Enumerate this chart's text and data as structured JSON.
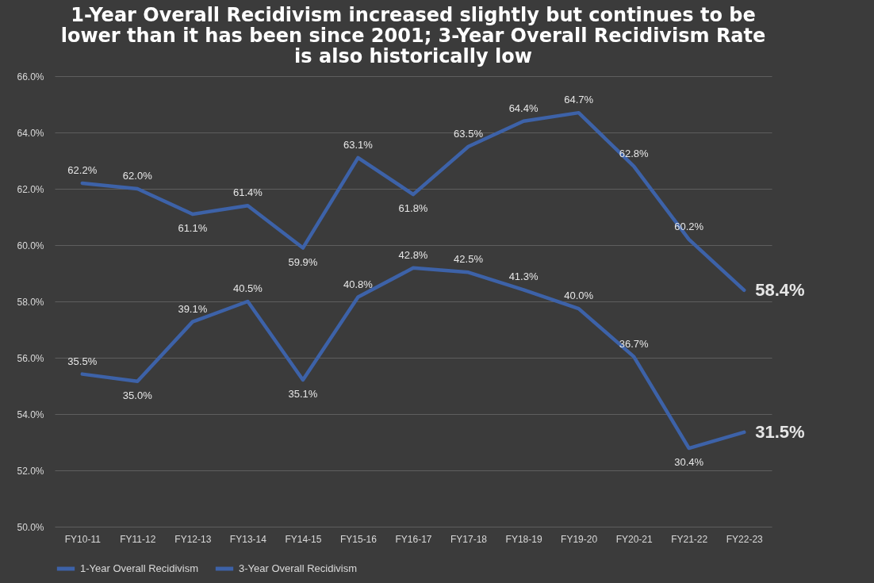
{
  "chart_data": {
    "type": "line",
    "title": "1-Year Overall Recidivism increased slightly but continues to be lower than it has been since 2001; 3-Year Overall Recidivism Rate is also historically low",
    "categories": [
      "FY10-11",
      "FY11-12",
      "FY12-13",
      "FY13-14",
      "FY14-15",
      "FY15-16",
      "FY16-17",
      "FY17-18",
      "FY18-19",
      "FY19-20",
      "FY20-21",
      "FY21-22",
      "FY22-23"
    ],
    "series": [
      {
        "name": "1-Year Overall Recidivism",
        "color": "#3d62a8",
        "axis": "y2",
        "values": [
          35.5,
          35.0,
          39.1,
          40.5,
          35.1,
          40.8,
          42.8,
          42.5,
          41.3,
          40.0,
          36.7,
          30.4,
          31.5
        ],
        "value_labels": [
          "35.5%",
          "35.0%",
          "39.1%",
          "40.5%",
          "35.1%",
          "40.8%",
          "42.8%",
          "42.5%",
          "41.3%",
          "40.0%",
          "36.7%",
          "30.4%",
          "31.5%"
        ]
      },
      {
        "name": "3-Year Overall Recidivism",
        "color": "#3d62a8",
        "values": [
          62.2,
          62.0,
          61.1,
          61.4,
          59.9,
          63.1,
          61.8,
          63.5,
          64.4,
          64.7,
          62.8,
          60.2,
          58.4
        ],
        "value_labels": [
          "62.2%",
          "62.0%",
          "61.1%",
          "61.4%",
          "59.9%",
          "63.1%",
          "61.8%",
          "63.5%",
          "64.4%",
          "64.7%",
          "62.8%",
          "60.2%",
          "58.4%"
        ]
      }
    ],
    "ylim": [
      50,
      66
    ],
    "yticks": [
      {
        "value": 50,
        "label": "50.0%"
      },
      {
        "value": 52,
        "label": "52.0%"
      },
      {
        "value": 54,
        "label": "54.0%"
      },
      {
        "value": 56,
        "label": "56.0%"
      },
      {
        "value": 58,
        "label": "58.0%"
      },
      {
        "value": 60,
        "label": "60.0%"
      },
      {
        "value": 62,
        "label": "62.0%"
      },
      {
        "value": 64,
        "label": "64.0%"
      },
      {
        "value": 66,
        "label": "66.0%"
      }
    ],
    "y2lim": [
      25,
      56
    ],
    "tick_labels": "xy",
    "grid": "y",
    "legend": "bottom",
    "line_style": "solid"
  }
}
